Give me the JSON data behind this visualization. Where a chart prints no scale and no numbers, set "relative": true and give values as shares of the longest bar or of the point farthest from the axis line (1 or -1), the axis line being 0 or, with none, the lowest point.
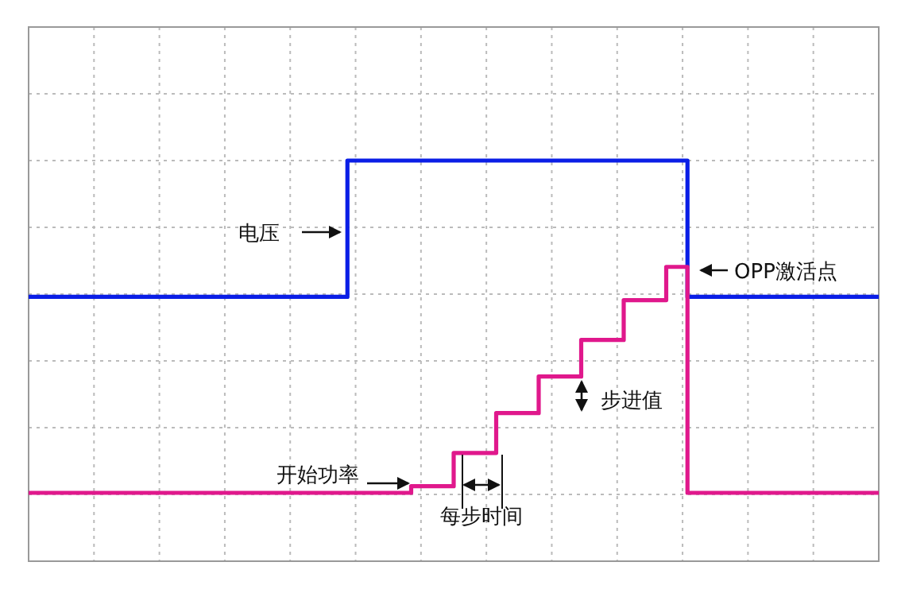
{
  "chart_data": {
    "type": "step",
    "relative": true,
    "grid": true,
    "categories": [
      null,
      null,
      null,
      null,
      null,
      null,
      null,
      null,
      null,
      null,
      null,
      null,
      null,
      null,
      null,
      null,
      null,
      null,
      null,
      null,
      null,
      null,
      null,
      null,
      null,
      null,
      null,
      null,
      null,
      null,
      null,
      null,
      null,
      null,
      null,
      null,
      null,
      null,
      null,
      null,
      null
    ],
    "series": [
      {
        "color": "#0a1ee6",
        "values": [
          0.59,
          0.59,
          0.59,
          0.59,
          0.59,
          0.59,
          0.59,
          0.59,
          0.59,
          0.59,
          0.59,
          0.59,
          0.59,
          0.59,
          0.59,
          1,
          1,
          1,
          1,
          1,
          1,
          1,
          1,
          1,
          1,
          1,
          1,
          1,
          1,
          1,
          1,
          0.59,
          0.59,
          0.59,
          0.59,
          0.59,
          0.59,
          0.59,
          0.59,
          0.59,
          0.59
        ]
      },
      {
        "color": "#e0188c",
        "values": [
          0,
          0,
          0,
          0,
          0,
          0,
          0,
          0,
          0,
          0,
          0,
          0,
          0,
          0,
          0,
          0,
          0,
          0,
          0.02,
          0.02,
          0.12,
          0.12,
          0.24,
          0.24,
          0.35,
          0.35,
          0.46,
          0.46,
          0.58,
          0.58,
          0.68,
          0,
          0,
          0,
          0,
          0,
          0,
          0,
          0,
          0,
          0
        ]
      }
    ],
    "annotations": [
      "电压",
      "OPP激活点",
      "步进值",
      "开始功率",
      "每步时间"
    ]
  }
}
